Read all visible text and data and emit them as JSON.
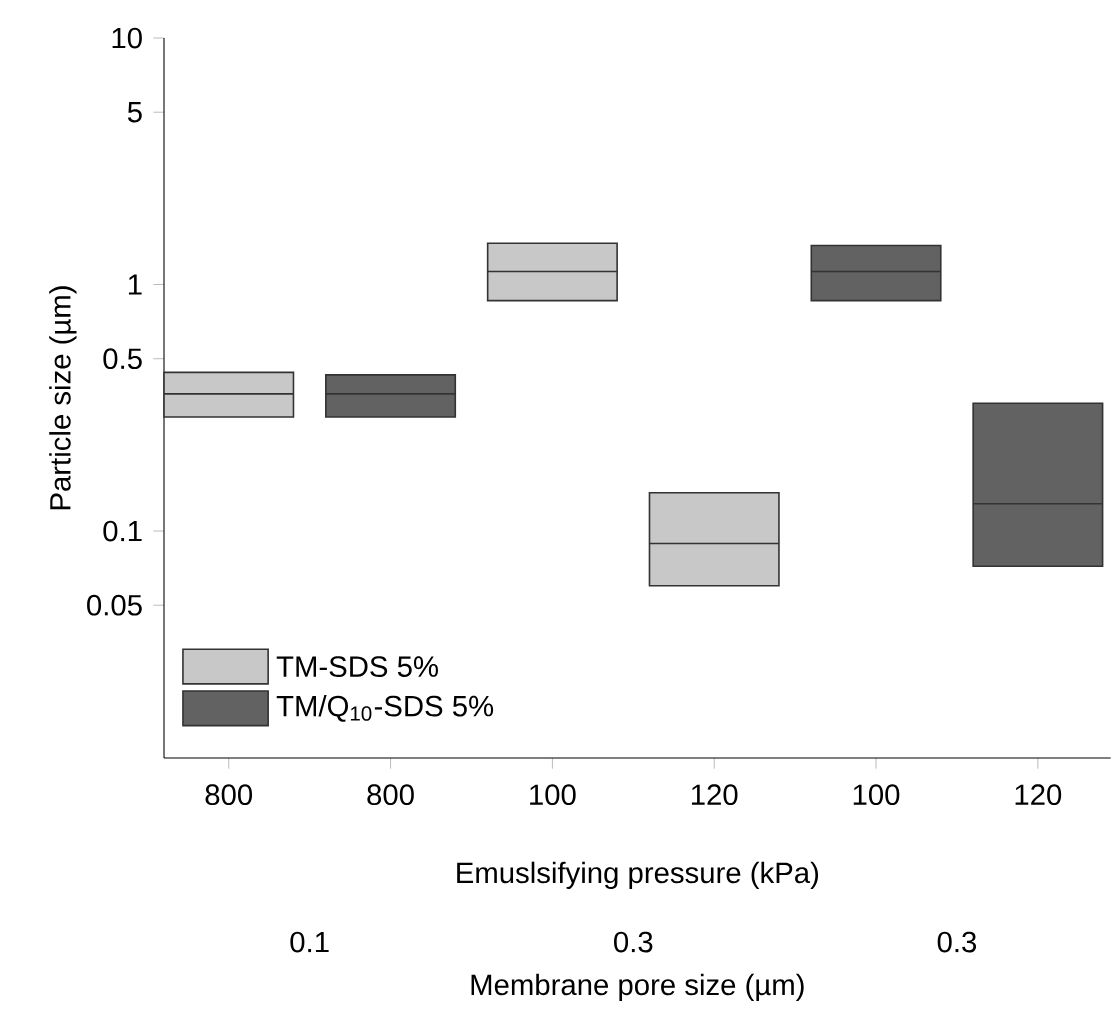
{
  "chart_data": {
    "type": "box",
    "ylabel": "Particle size (µm)",
    "xlabel": "Emuslsifying pressure (kPa)",
    "categories": [
      "800",
      "800",
      "100",
      "120",
      "100",
      "120"
    ],
    "log": "y",
    "ylim": [
      0.012,
      10
    ],
    "yticks": [
      0.05,
      0.1,
      0.5,
      1,
      5,
      10
    ],
    "legend": "bottom left",
    "series": [
      {
        "name": "TM-SDS 5%",
        "color": "#c8c8c8",
        "boxes": [
          {
            "low": 0.29,
            "q1": 0.29,
            "median": 0.36,
            "q3": 0.44,
            "high": 0.44
          },
          null,
          {
            "low": 0.86,
            "q1": 0.86,
            "median": 1.13,
            "q3": 1.47,
            "high": 1.47
          },
          {
            "low": 0.06,
            "q1": 0.06,
            "median": 0.089,
            "q3": 0.143,
            "high": 0.143
          },
          null,
          null
        ]
      },
      {
        "name": "TM/Q$_{10}$-SDS 5%",
        "color": "#626262",
        "boxes": [
          null,
          {
            "low": 0.29,
            "q1": 0.29,
            "median": 0.36,
            "q3": 0.43,
            "high": 0.43
          },
          null,
          null,
          {
            "low": 0.86,
            "q1": 0.86,
            "median": 1.13,
            "q3": 1.44,
            "high": 1.44
          },
          {
            "low": 0.072,
            "q1": 0.072,
            "median": 0.129,
            "q3": 0.33,
            "high": 0.33
          }
        ]
      }
    ],
    "annotations": [
      "0.1",
      "0.3",
      "0.3",
      "Membrane pore size (µm)"
    ]
  }
}
